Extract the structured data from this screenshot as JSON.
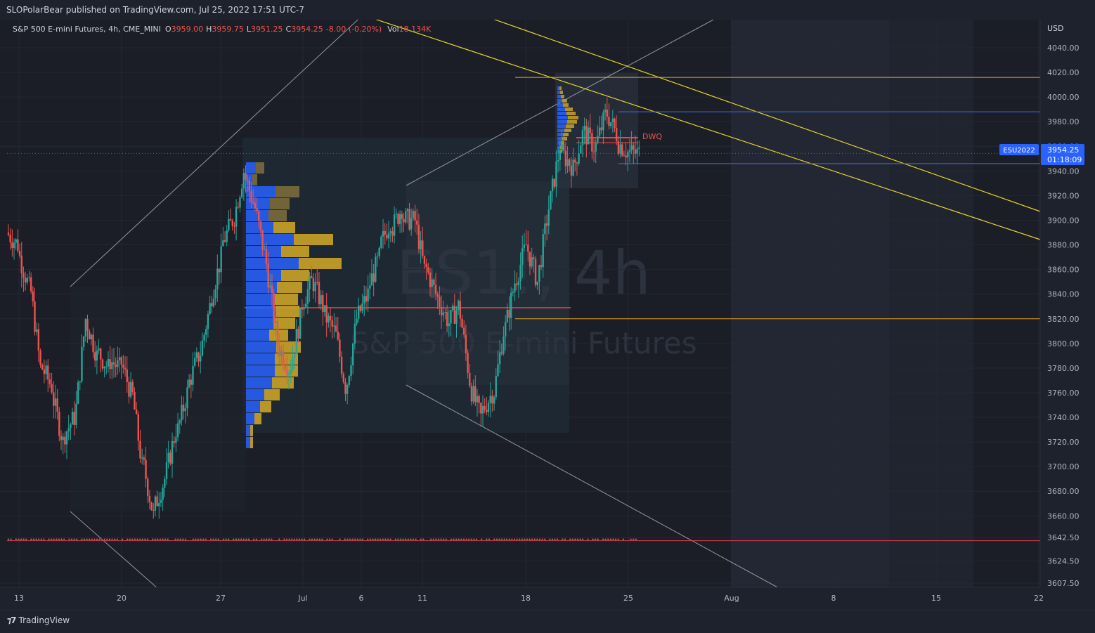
{
  "header": {
    "publisher": "SLOPolarBear published on TradingView.com, Jul 25, 2022 17:51 UTC-7"
  },
  "chart_data": {
    "type": "candlestick",
    "symbol_line": "S&P 500 E-mini Futures, 4h, CME_MINI",
    "ohlc": {
      "O": "3959.00",
      "H": "3959.75",
      "L": "3951.25",
      "C": "3954.25",
      "change": "-8.00 (-0.20%)"
    },
    "volume_label": "Vol",
    "volume": "18.134K",
    "currency": "USD",
    "watermark_symbol": "ES1!, 4h",
    "watermark_name": "S&P 500 E-mini Futures",
    "ylim": [
      3600,
      4055
    ],
    "y_ticks": [
      "4040.00",
      "4020.00",
      "4000.00",
      "3980.00",
      "3960.00",
      "3940.00",
      "3920.00",
      "3900.00",
      "3880.00",
      "3860.00",
      "3840.00",
      "3820.00",
      "3800.00",
      "3780.00",
      "3760.00",
      "3740.00",
      "3720.00",
      "3700.00",
      "3680.00",
      "3660.00",
      "3642.50",
      "3624.50",
      "3607.50"
    ],
    "x_ticks": [
      "13",
      "20",
      "27",
      "Jul",
      "6",
      "11",
      "18",
      "25",
      "Aug",
      "8",
      "15",
      "22"
    ],
    "last_price_symbol": "ESU2022",
    "last_price": "3954.25",
    "countdown": "01:18:09",
    "level_marker": "DWQ",
    "horizontal_levels": [
      4016,
      3988,
      3963,
      3946,
      3820,
      3640
    ],
    "daily_closes": [
      3880,
      3845,
      3780,
      3765,
      3720,
      3740,
      3820,
      3790,
      3780,
      3780,
      3760,
      3700,
      3660,
      3690,
      3730,
      3760,
      3790,
      3830,
      3870,
      3900,
      3940,
      3910,
      3865,
      3800,
      3780,
      3820,
      3850,
      3830,
      3810,
      3765,
      3820,
      3840,
      3870,
      3900,
      3910,
      3900,
      3860,
      3840,
      3820,
      3830,
      3770,
      3740,
      3760,
      3810,
      3850,
      3880,
      3850,
      3910,
      3960,
      3945,
      3970,
      3960,
      3985,
      3970,
      3955,
      3954.25
    ]
  },
  "colors": {
    "up": "#26a69a",
    "down": "#ef5350",
    "background": "#1b1e27",
    "profile_blue": "#2962ff",
    "profile_gold": "#c9a227",
    "level_orange": "#f0a020",
    "trend_yellow": "#e6d32a",
    "channel_grey": "#9598a1",
    "poc_red": "#f44336"
  },
  "footer": {
    "brand": "TradingView"
  }
}
